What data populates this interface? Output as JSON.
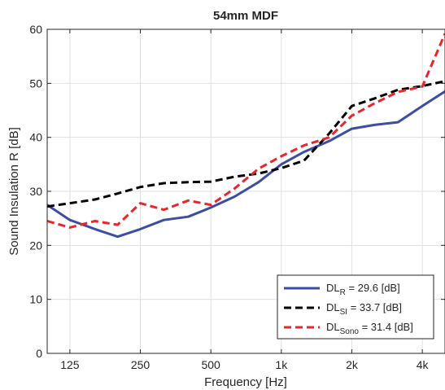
{
  "chart_data": {
    "type": "line",
    "title": "54mm MDF",
    "xlabel": "Frequency [Hz]",
    "ylabel": "Sound Insulation R [dB]",
    "xscale": "log",
    "xlim": [
      100,
      5000
    ],
    "ylim": [
      0,
      60
    ],
    "grid": true,
    "legend_position": "bottom-right",
    "x": [
      100,
      125,
      160,
      200,
      250,
      315,
      400,
      500,
      630,
      800,
      1000,
      1250,
      1600,
      2000,
      2500,
      3150,
      4000,
      5000
    ],
    "x_ticks": [
      {
        "value": 125,
        "label": "125"
      },
      {
        "value": 250,
        "label": "250"
      },
      {
        "value": 500,
        "label": "500"
      },
      {
        "value": 1000,
        "label": "1k"
      },
      {
        "value": 2000,
        "label": "2k"
      },
      {
        "value": 4000,
        "label": "4k"
      }
    ],
    "y_ticks": [
      {
        "value": 0,
        "label": "0"
      },
      {
        "value": 10,
        "label": "10"
      },
      {
        "value": 20,
        "label": "20"
      },
      {
        "value": 30,
        "label": "30"
      },
      {
        "value": 40,
        "label": "40"
      },
      {
        "value": 50,
        "label": "50"
      },
      {
        "value": 60,
        "label": "60"
      }
    ],
    "series": [
      {
        "legend_main": "DL",
        "legend_sub": "R",
        "legend_value": " = 29.6 [dB]",
        "color": "#3b4ea3",
        "dash": "solid",
        "values": [
          27.5,
          24.7,
          23.0,
          21.6,
          23.0,
          24.7,
          25.3,
          27.0,
          29.0,
          31.7,
          35.0,
          37.3,
          39.3,
          41.6,
          42.3,
          42.8,
          45.8,
          48.5
        ]
      },
      {
        "legend_main": "DL",
        "legend_sub": "SI",
        "legend_value": " = 33.7 [dB]",
        "color": "#000000",
        "dash": "dashed",
        "values": [
          27.2,
          27.8,
          28.5,
          29.6,
          30.8,
          31.5,
          31.7,
          31.8,
          32.7,
          33.3,
          34.3,
          35.7,
          40.7,
          45.8,
          47.2,
          48.8,
          49.5,
          50.4
        ]
      },
      {
        "legend_main": "DL",
        "legend_sub": "Sono",
        "legend_value": " = 31.4 [dB]",
        "color": "#e8262b",
        "dash": "dashed",
        "values": [
          24.5,
          23.3,
          24.5,
          23.8,
          27.8,
          26.6,
          28.3,
          27.5,
          30.5,
          34.2,
          36.5,
          38.5,
          40.0,
          44.0,
          46.3,
          48.4,
          49.4,
          59.2
        ]
      }
    ]
  }
}
